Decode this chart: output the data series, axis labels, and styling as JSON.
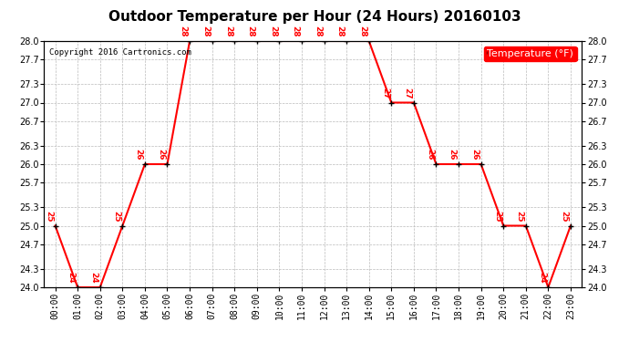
{
  "title": "Outdoor Temperature per Hour (24 Hours) 20160103",
  "copyright": "Copyright 2016 Cartronics.com",
  "legend_label": "Temperature (°F)",
  "hours": [
    "00:00",
    "01:00",
    "02:00",
    "03:00",
    "04:00",
    "05:00",
    "06:00",
    "07:00",
    "08:00",
    "09:00",
    "10:00",
    "11:00",
    "12:00",
    "13:00",
    "14:00",
    "15:00",
    "16:00",
    "17:00",
    "18:00",
    "19:00",
    "20:00",
    "21:00",
    "22:00",
    "23:00"
  ],
  "temps": [
    25,
    24,
    24,
    25,
    26,
    26,
    28,
    28,
    28,
    28,
    28,
    28,
    28,
    28,
    28,
    27,
    27,
    26,
    26,
    26,
    25,
    25,
    24,
    25
  ],
  "line_color": "red",
  "marker_color": "black",
  "label_color": "red",
  "bg_color": "white",
  "grid_color": "#bbbbbb",
  "ylim_min": 24.0,
  "ylim_max": 28.0,
  "ytick_values": [
    24.0,
    24.3,
    24.7,
    25.0,
    25.3,
    25.7,
    26.0,
    26.3,
    26.7,
    27.0,
    27.3,
    27.7,
    28.0
  ],
  "title_fontsize": 11,
  "annotation_fontsize": 6.5,
  "tick_fontsize": 7,
  "legend_fontsize": 8,
  "copyright_fontsize": 6.5,
  "linewidth": 1.5,
  "marker_size": 4
}
